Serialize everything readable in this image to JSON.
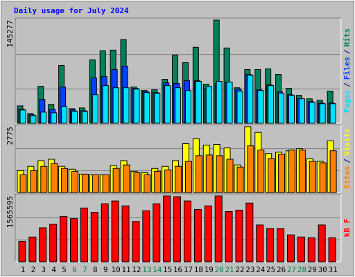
{
  "title": "Daily usage for July 2024",
  "legend_separator": "/",
  "chart_data": [
    {
      "type": "bar",
      "ylim": [
        0,
        145277
      ],
      "yticks": [
        145277
      ],
      "grid_divisions": 3,
      "series": [
        {
          "name": "Pages",
          "color": "#00e0ff",
          "values": [
            18700,
            10800,
            15700,
            14700,
            23600,
            16700,
            16700,
            40200,
            53000,
            50000,
            50000,
            48100,
            43200,
            42200,
            53000,
            50000,
            46100,
            58900,
            52000,
            58900,
            57900,
            45200,
            67700,
            46100,
            53000,
            42200,
            39300,
            34400,
            29400,
            27500,
            27500
          ]
        },
        {
          "name": "Files",
          "color": "#0040ff",
          "values": [
            19600,
            11800,
            33400,
            19600,
            51000,
            18700,
            17700,
            63800,
            65800,
            75600,
            80500,
            49100,
            45200,
            43200,
            56900,
            56000,
            59900,
            59900,
            49100,
            56000,
            57900,
            48100,
            68700,
            47100,
            54000,
            44200,
            40200,
            34400,
            30400,
            28500,
            28500
          ]
        },
        {
          "name": "Hits",
          "color": "#00805c",
          "values": [
            24500,
            13700,
            52000,
            26500,
            81500,
            20600,
            21600,
            89300,
            102100,
            103000,
            117800,
            51000,
            46100,
            47100,
            61800,
            96200,
            85400,
            107000,
            55000,
            145277,
            106000,
            50000,
            75600,
            75600,
            76600,
            68700,
            49100,
            39300,
            34400,
            32400,
            45200
          ]
        }
      ]
    },
    {
      "type": "bar",
      "ylim": [
        0,
        2775
      ],
      "yticks": [
        2775
      ],
      "grid_divisions": 3,
      "series": [
        {
          "name": "Sites",
          "color": "#ff8000",
          "values": [
            746,
            925,
            1104,
            1223,
            1015,
            895,
            776,
            746,
            746,
            1015,
            1164,
            836,
            746,
            895,
            955,
            1104,
            1313,
            1552,
            1582,
            1552,
            1402,
            1074,
            1969,
            1790,
            1432,
            1611,
            1790,
            1790,
            1313,
            1253,
            1761
          ]
        },
        {
          "name": "Visits",
          "color": "#ffff00",
          "values": [
            925,
            1104,
            1343,
            1402,
            1104,
            985,
            776,
            746,
            746,
            1134,
            1343,
            895,
            836,
            1015,
            1104,
            1343,
            2059,
            2268,
            2000,
            2029,
            1880,
            1164,
            2775,
            2536,
            1641,
            1701,
            1761,
            1850,
            1432,
            1313,
            2178
          ]
        }
      ]
    },
    {
      "type": "bar",
      "ylim": [
        0,
        1565595
      ],
      "yticks": [
        1565595
      ],
      "grid_divisions": 3,
      "categories": [
        "1",
        "2",
        "3",
        "4",
        "5",
        "6",
        "7",
        "8",
        "9",
        "10",
        "11",
        "12",
        "13",
        "14",
        "15",
        "16",
        "17",
        "18",
        "19",
        "20",
        "21",
        "22",
        "23",
        "24",
        "25",
        "26",
        "27",
        "28",
        "29",
        "30",
        "31"
      ],
      "category_colors": [
        "#000000",
        "#000000",
        "#000000",
        "#000000",
        "#000000",
        "#008040",
        "#008040",
        "#000000",
        "#000000",
        "#000000",
        "#000000",
        "#000000",
        "#008040",
        "#008040",
        "#000000",
        "#000000",
        "#000000",
        "#000000",
        "#000000",
        "#008040",
        "#008040",
        "#000000",
        "#000000",
        "#000000",
        "#000000",
        "#000000",
        "#008040",
        "#008040",
        "#000000",
        "#000000",
        "#000000"
      ],
      "series": [
        {
          "name": "kB F",
          "color": "#ff0000",
          "values": [
            488200,
            589200,
            808000,
            892200,
            1077400,
            1026900,
            1279400,
            1178400,
            1380400,
            1447700,
            1329900,
            959500,
            1212000,
            1380400,
            1565595,
            1548700,
            1447700,
            1245700,
            1329900,
            1565595,
            1195200,
            1228900,
            1397200,
            875400,
            791200,
            791200,
            639700,
            589200,
            572400,
            875400,
            572400
          ]
        }
      ]
    }
  ]
}
